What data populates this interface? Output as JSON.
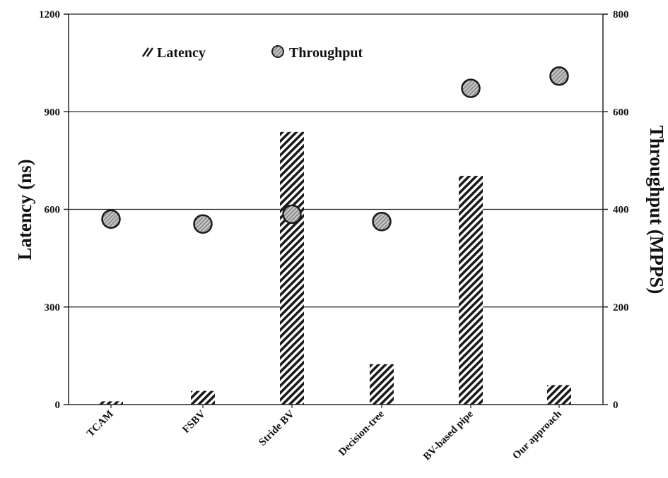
{
  "chart_data": {
    "type": "bar",
    "categories": [
      "TCAM",
      "FSBV",
      "Stride BV",
      "Decision-tree",
      "BV-based pipe",
      "Our approach"
    ],
    "series": [
      {
        "name": "Latency",
        "kind": "bar",
        "axis": "left",
        "values": [
          10,
          42,
          838,
          124,
          703,
          60
        ]
      },
      {
        "name": "Throughput",
        "kind": "scatter",
        "axis": "right",
        "values": [
          380,
          370,
          390,
          375,
          648,
          673
        ]
      }
    ],
    "title": "",
    "ylabel": "Latency (ns)",
    "y2label": "Throughput (MPPS)",
    "ylim": [
      0,
      1200
    ],
    "y2lim": [
      0,
      800
    ],
    "yticks": [
      "0",
      "300",
      "600",
      "900",
      "1200"
    ],
    "y2ticks": [
      "0",
      "200",
      "400",
      "600",
      "800"
    ],
    "grid": true,
    "legend_position": "top-left",
    "colors": {
      "bar_stripe": "#1a1a1a",
      "marker_fill": "#bdbdbd",
      "marker_hatch": "#6e6e6e",
      "gridline": "#222222"
    }
  }
}
